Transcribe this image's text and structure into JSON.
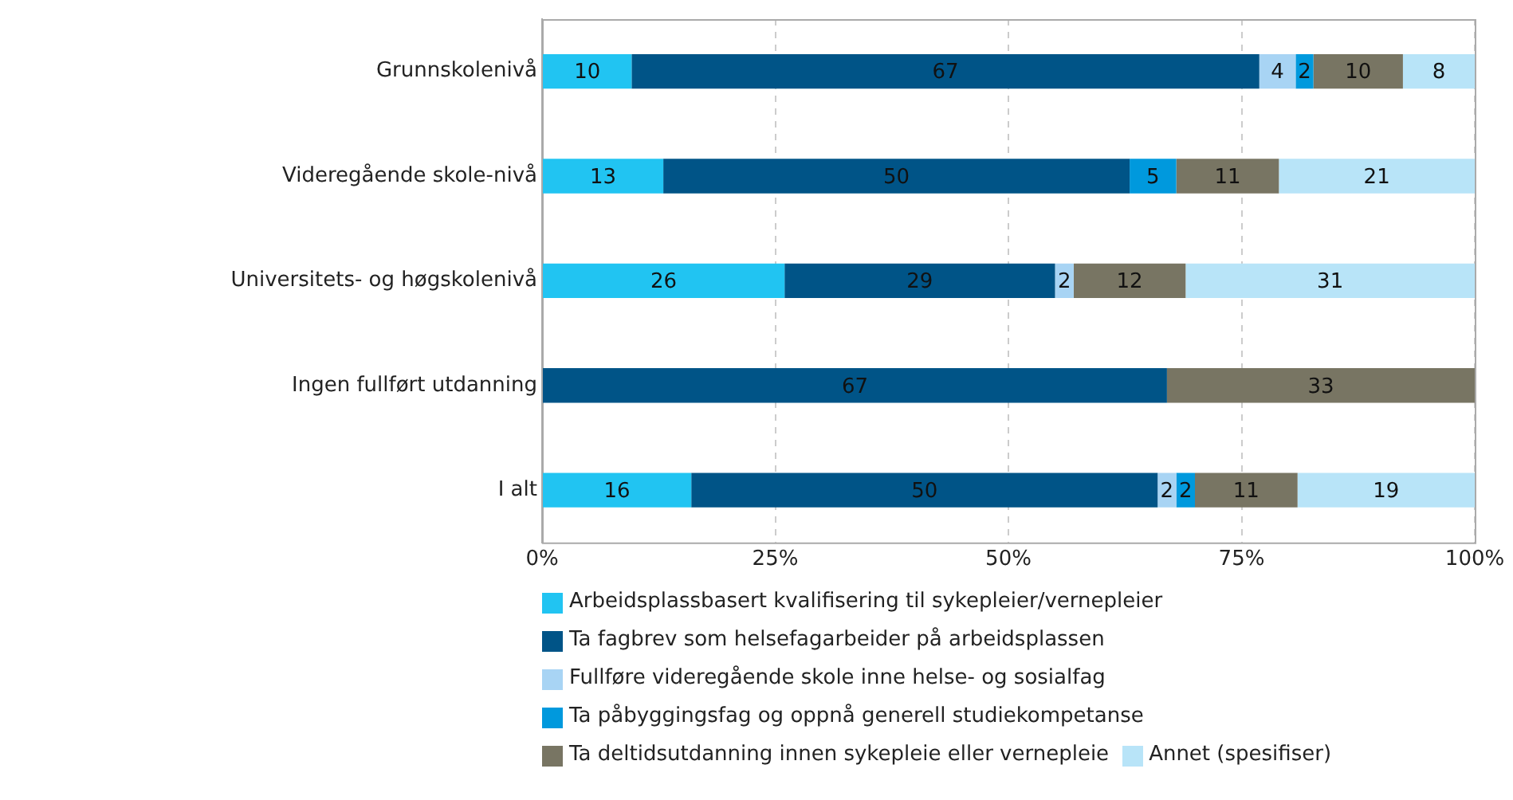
{
  "chart_data": {
    "type": "bar",
    "orientation": "horizontal",
    "stacked": true,
    "categories": [
      "Grunnskolenivå",
      "Videregående skole-nivå",
      "Universitets- og høgskolenivå",
      "Ingen fullført utdanning",
      "I alt"
    ],
    "series": [
      {
        "name": "Arbeidsplassbasert kvalifisering til sykepleier/vernepleier",
        "color": "#21c4f2",
        "values": [
          9.6,
          13,
          26,
          null,
          16
        ],
        "value_labels": [
          "10",
          "13",
          "26",
          null,
          "16"
        ]
      },
      {
        "name": "Ta fagbrev som helsefagarbeider på arbeidsplassen",
        "color": "#005487",
        "values": [
          67.3,
          50,
          29,
          67,
          50
        ],
        "value_labels": [
          "67",
          "50",
          "29",
          "67",
          "50"
        ]
      },
      {
        "name": "Fullføre videregående skole inne helse- og sosialfag",
        "color": "#a8d4f4",
        "values": [
          3.9,
          null,
          2,
          null,
          2
        ],
        "value_labels": [
          "4",
          null,
          "2",
          null,
          "2"
        ]
      },
      {
        "name": "Ta påbyggingsfag og oppnå generell studiekompetanse",
        "color": "#0099dd",
        "values": [
          1.9,
          5,
          null,
          null,
          2
        ],
        "value_labels": [
          "2",
          "5",
          null,
          null,
          "2"
        ]
      },
      {
        "name": "Ta deltidsutdanning innen sykepleie eller vernepleie",
        "color": "#787563",
        "values": [
          9.6,
          11,
          12,
          33,
          11
        ],
        "value_labels": [
          "10",
          "11",
          "12",
          "33",
          "11"
        ]
      },
      {
        "name": "Annet (spesifiser)",
        "color": "#b8e4f8",
        "values": [
          7.7,
          21,
          31,
          null,
          19
        ],
        "value_labels": [
          "8",
          "21",
          "31",
          null,
          "19"
        ]
      }
    ],
    "xlim": [
      0,
      100
    ],
    "xticks": [
      {
        "value": 0,
        "label": "0%"
      },
      {
        "value": 25,
        "label": "25%"
      },
      {
        "value": 50,
        "label": "50%"
      },
      {
        "value": 75,
        "label": "75%"
      },
      {
        "value": 100,
        "label": "100%"
      }
    ],
    "grid": "x",
    "legend": "bottom"
  }
}
